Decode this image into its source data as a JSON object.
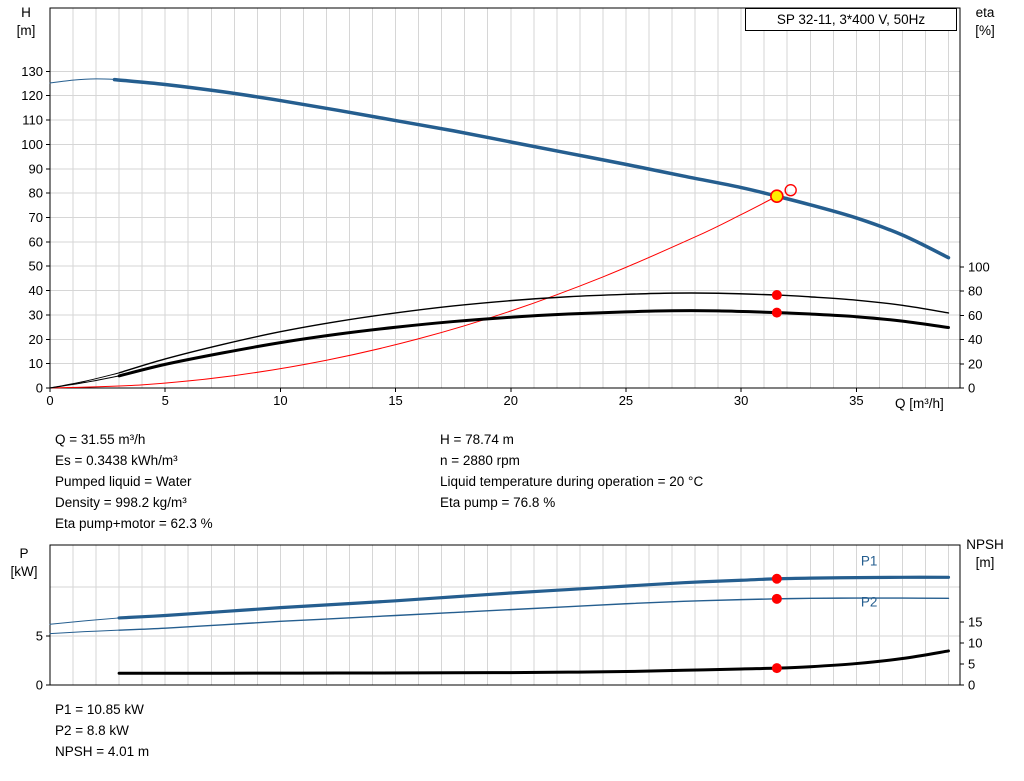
{
  "colors": {
    "grid": "#d6d6d6",
    "curve_blue": "#255e8f",
    "marker_red": "#ff0000",
    "duty_yellow": "#ffeb00",
    "black": "#000000"
  },
  "chart_data": [
    {
      "name": "hq-eta-chart",
      "type": "line",
      "title": "SP 32-11, 3*400 V, 50Hz",
      "x_axis": {
        "label": "Q [m³/h]",
        "min": 0,
        "max": 39.5,
        "ticks": [
          0,
          5,
          10,
          15,
          20,
          25,
          30,
          35
        ],
        "minor_step": 1,
        "show_labels": true
      },
      "y_left": {
        "label": "H",
        "unit": "[m]",
        "min": 0,
        "max": 156,
        "ticks": [
          0,
          10,
          20,
          30,
          40,
          50,
          60,
          70,
          80,
          90,
          100,
          110,
          120,
          130
        ],
        "grid": [
          10,
          20,
          30,
          40,
          50,
          60,
          70,
          80,
          90,
          100,
          110,
          120,
          130
        ]
      },
      "y_right": {
        "label": "eta",
        "unit": "[%]",
        "min": 0,
        "max": 314,
        "ticks": [
          0,
          20,
          40,
          60,
          80,
          100
        ]
      },
      "series": [
        {
          "name": "h-curve-lead",
          "axis": "left",
          "color": "#255e8f",
          "width": 1,
          "points": [
            [
              0,
              125.2
            ],
            [
              1,
              126.4
            ],
            [
              2,
              126.9
            ],
            [
              3,
              126.6
            ]
          ]
        },
        {
          "name": "h-curve",
          "axis": "left",
          "color": "#255e8f",
          "width": 3.5,
          "points": [
            [
              2.8,
              126.6
            ],
            [
              5,
              124.6
            ],
            [
              7.5,
              121.6
            ],
            [
              10,
              118
            ],
            [
              12.5,
              114
            ],
            [
              15,
              109.8
            ],
            [
              17.5,
              105.6
            ],
            [
              20,
              101
            ],
            [
              22.5,
              96.4
            ],
            [
              25,
              91.8
            ],
            [
              27.5,
              87
            ],
            [
              30,
              82.3
            ],
            [
              31.55,
              78.74
            ],
            [
              33,
              75.2
            ],
            [
              35,
              69.8
            ],
            [
              37,
              62.8
            ],
            [
              39,
              53.5
            ]
          ]
        },
        {
          "name": "system-curve",
          "axis": "left",
          "color": "#ff0000",
          "width": 1,
          "points": [
            [
              0,
              0
            ],
            [
              4,
              1.3
            ],
            [
              8,
              5.1
            ],
            [
              12,
              11.4
            ],
            [
              16,
              20.2
            ],
            [
              20,
              31.6
            ],
            [
              24,
              45.6
            ],
            [
              28,
              62
            ],
            [
              30,
              71.2
            ],
            [
              31.55,
              78.74
            ]
          ]
        },
        {
          "name": "eta-pump-lead",
          "axis": "right",
          "color": "#000000",
          "width": 1,
          "points": [
            [
              0,
              0
            ],
            [
              1.5,
              5.5
            ],
            [
              3,
              12.5
            ]
          ]
        },
        {
          "name": "eta-pump-curve",
          "axis": "right",
          "color": "#000000",
          "width": 1.4,
          "points": [
            [
              3,
              12.5
            ],
            [
              5,
              24
            ],
            [
              7.5,
              36
            ],
            [
              10,
              46.5
            ],
            [
              12.5,
              55
            ],
            [
              15,
              62
            ],
            [
              17.5,
              67.8
            ],
            [
              20,
              72.2
            ],
            [
              22.5,
              75.4
            ],
            [
              25,
              77.4
            ],
            [
              27,
              78.4
            ],
            [
              29,
              78.3
            ],
            [
              31.55,
              76.8
            ],
            [
              33,
              75.3
            ],
            [
              35,
              72.6
            ],
            [
              37,
              68.3
            ],
            [
              39,
              62
            ]
          ]
        },
        {
          "name": "eta-pump-motor-lead",
          "axis": "right",
          "color": "#000000",
          "width": 1,
          "points": [
            [
              0,
              0
            ],
            [
              1.5,
              4.5
            ],
            [
              3,
              10
            ]
          ]
        },
        {
          "name": "eta-pump-motor-curve",
          "axis": "right",
          "color": "#000000",
          "width": 3,
          "points": [
            [
              3,
              10
            ],
            [
              5,
              19.5
            ],
            [
              7.5,
              29
            ],
            [
              10,
              37.5
            ],
            [
              12.5,
              44.5
            ],
            [
              15,
              50.2
            ],
            [
              17.5,
              54.9
            ],
            [
              20,
              58.5
            ],
            [
              22.5,
              61.1
            ],
            [
              25,
              62.9
            ],
            [
              27,
              63.8
            ],
            [
              29,
              63.7
            ],
            [
              31.55,
              62.3
            ],
            [
              33,
              61.1
            ],
            [
              35,
              58.9
            ],
            [
              37,
              55.3
            ],
            [
              39,
              50
            ]
          ]
        }
      ],
      "markers": [
        {
          "name": "duty-point-outline",
          "axis": "left",
          "x": 32.15,
          "y": 81.2,
          "r": 5.5,
          "fill": "none",
          "stroke": "#ff0000",
          "stroke_width": 1.4
        },
        {
          "name": "duty-point-marker",
          "axis": "left",
          "x": 31.55,
          "y": 78.74,
          "r": 6,
          "fill": "#ffeb00",
          "stroke": "#ff0000",
          "stroke_width": 1.6
        },
        {
          "name": "eta-pump-point",
          "axis": "right",
          "x": 31.55,
          "y": 76.8,
          "r": 5,
          "fill": "#ff0000"
        },
        {
          "name": "eta-pump-motor-point",
          "axis": "right",
          "x": 31.55,
          "y": 62.3,
          "r": 5,
          "fill": "#ff0000"
        }
      ],
      "labels": []
    },
    {
      "name": "power-npsh-chart",
      "type": "line",
      "title": "",
      "x_axis": {
        "label": "",
        "min": 0,
        "max": 39.5,
        "ticks": [],
        "minor_step": 1,
        "show_labels": false
      },
      "y_left": {
        "label": "P",
        "unit": "[kW]",
        "min": 0,
        "max": 14.3,
        "ticks": [
          0,
          5
        ],
        "grid": [
          5,
          10
        ]
      },
      "y_right": {
        "label": "NPSH",
        "unit": "[m]",
        "min": 0,
        "max": 33.3,
        "ticks": [
          0,
          5,
          10,
          15
        ]
      },
      "series": [
        {
          "name": "p1-lead",
          "axis": "left",
          "color": "#255e8f",
          "width": 1,
          "points": [
            [
              0,
              6.2
            ],
            [
              1.5,
              6.55
            ],
            [
              3,
              6.85
            ]
          ]
        },
        {
          "name": "p1-curve",
          "axis": "left",
          "color": "#255e8f",
          "width": 3.2,
          "points": [
            [
              3,
              6.85
            ],
            [
              5,
              7.1
            ],
            [
              7.5,
              7.5
            ],
            [
              10,
              7.9
            ],
            [
              12.5,
              8.25
            ],
            [
              15,
              8.6
            ],
            [
              17.5,
              9
            ],
            [
              20,
              9.4
            ],
            [
              22.5,
              9.75
            ],
            [
              25,
              10.1
            ],
            [
              27.5,
              10.45
            ],
            [
              30,
              10.7
            ],
            [
              31.55,
              10.85
            ],
            [
              33,
              10.92
            ],
            [
              35,
              10.97
            ],
            [
              37,
              11
            ],
            [
              39,
              11
            ]
          ]
        },
        {
          "name": "p2-lead",
          "axis": "left",
          "color": "#255e8f",
          "width": 1,
          "points": [
            [
              0,
              5.25
            ],
            [
              1.5,
              5.45
            ],
            [
              3,
              5.6
            ]
          ]
        },
        {
          "name": "p2-curve",
          "axis": "left",
          "color": "#255e8f",
          "width": 1.4,
          "points": [
            [
              3,
              5.6
            ],
            [
              5,
              5.8
            ],
            [
              7.5,
              6.15
            ],
            [
              10,
              6.5
            ],
            [
              12.5,
              6.8
            ],
            [
              15,
              7.1
            ],
            [
              17.5,
              7.4
            ],
            [
              20,
              7.7
            ],
            [
              22.5,
              8
            ],
            [
              25,
              8.3
            ],
            [
              27.5,
              8.55
            ],
            [
              30,
              8.72
            ],
            [
              31.55,
              8.8
            ],
            [
              33,
              8.85
            ],
            [
              35,
              8.88
            ],
            [
              37,
              8.88
            ],
            [
              39,
              8.85
            ]
          ]
        },
        {
          "name": "npsh-curve",
          "axis": "right",
          "color": "#000000",
          "width": 3,
          "points": [
            [
              3,
              2.8
            ],
            [
              7.5,
              2.8
            ],
            [
              12.5,
              2.85
            ],
            [
              17.5,
              2.9
            ],
            [
              20,
              2.95
            ],
            [
              22.5,
              3.05
            ],
            [
              25,
              3.2
            ],
            [
              27.5,
              3.5
            ],
            [
              30,
              3.82
            ],
            [
              31.55,
              4.01
            ],
            [
              33,
              4.35
            ],
            [
              35,
              5.1
            ],
            [
              37,
              6.3
            ],
            [
              39,
              8.1
            ]
          ]
        }
      ],
      "markers": [
        {
          "name": "p1-point",
          "axis": "left",
          "x": 31.55,
          "y": 10.85,
          "r": 5,
          "fill": "#ff0000"
        },
        {
          "name": "p2-point",
          "axis": "left",
          "x": 31.55,
          "y": 8.8,
          "r": 5,
          "fill": "#ff0000"
        },
        {
          "name": "npsh-point",
          "axis": "right",
          "x": 31.55,
          "y": 4.01,
          "r": 5,
          "fill": "#ff0000"
        }
      ],
      "labels": [
        {
          "name": "p1-label",
          "text": "P1",
          "x": 35.2,
          "y": 12.2,
          "axis": "left",
          "color": "#255e8f"
        },
        {
          "name": "p2-label",
          "text": "P2",
          "x": 35.2,
          "y": 8.0,
          "axis": "left",
          "color": "#255e8f"
        }
      ]
    }
  ],
  "info_top": {
    "left": [
      "Q = 31.55 m³/h",
      "Es = 0.3438 kWh/m³",
      "Pumped liquid = Water",
      "Density = 998.2 kg/m³",
      "Eta pump+motor = 62.3 %"
    ],
    "right": [
      "H = 78.74 m",
      "n = 2880 rpm",
      "Liquid temperature during operation = 20 °C",
      "Eta pump = 76.8 %"
    ]
  },
  "info_bottom": [
    "P1 = 10.85 kW",
    "P2 = 8.8 kW",
    "NPSH = 4.01 m"
  ]
}
